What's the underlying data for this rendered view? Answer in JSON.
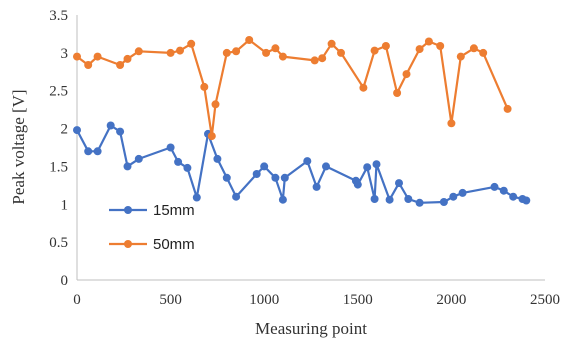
{
  "chart_data": {
    "type": "line",
    "title": "",
    "xlabel": "Measuring point",
    "ylabel": "Peak voltage [V]",
    "xlim": [
      0,
      2500
    ],
    "ylim": [
      0,
      3.5
    ],
    "xticks": [
      "0",
      "500",
      "1000",
      "1500",
      "2000",
      "2500"
    ],
    "yticks": [
      "0",
      "0.5",
      "1",
      "1.5",
      "2",
      "2.5",
      "3",
      "3.5"
    ],
    "grid": false,
    "legend_position": "lower-left",
    "series": [
      {
        "name": "15mm",
        "color": "#4472C4",
        "x": [
          0,
          60,
          110,
          180,
          230,
          270,
          330,
          500,
          540,
          590,
          640,
          700,
          750,
          800,
          850,
          960,
          1000,
          1060,
          1100,
          1110,
          1230,
          1280,
          1330,
          1490,
          1500,
          1550,
          1590,
          1600,
          1670,
          1720,
          1770,
          1830,
          1960,
          2010,
          2060,
          2230,
          2280,
          2330,
          2380,
          2400
        ],
        "y": [
          1.98,
          1.7,
          1.7,
          2.04,
          1.96,
          1.5,
          1.6,
          1.75,
          1.56,
          1.48,
          1.09,
          1.93,
          1.6,
          1.35,
          1.1,
          1.4,
          1.5,
          1.35,
          1.06,
          1.35,
          1.57,
          1.23,
          1.5,
          1.31,
          1.26,
          1.49,
          1.07,
          1.53,
          1.06,
          1.28,
          1.07,
          1.02,
          1.03,
          1.1,
          1.15,
          1.23,
          1.18,
          1.1,
          1.07,
          1.05
        ]
      },
      {
        "name": "50mm",
        "color": "#ED7D31",
        "x": [
          0,
          60,
          110,
          230,
          270,
          330,
          500,
          550,
          610,
          680,
          720,
          740,
          800,
          850,
          920,
          1010,
          1060,
          1100,
          1270,
          1310,
          1360,
          1410,
          1530,
          1590,
          1650,
          1710,
          1760,
          1830,
          1880,
          1940,
          2000,
          2050,
          2120,
          2170,
          2300
        ],
        "y": [
          2.95,
          2.84,
          2.95,
          2.84,
          2.92,
          3.02,
          3.0,
          3.03,
          3.12,
          2.55,
          1.9,
          2.32,
          3.0,
          3.02,
          3.17,
          3.0,
          3.06,
          2.95,
          2.9,
          2.93,
          3.12,
          3.0,
          2.54,
          3.03,
          3.09,
          2.47,
          2.72,
          3.05,
          3.15,
          3.09,
          2.07,
          2.95,
          3.06,
          3.0,
          2.26
        ]
      }
    ]
  }
}
